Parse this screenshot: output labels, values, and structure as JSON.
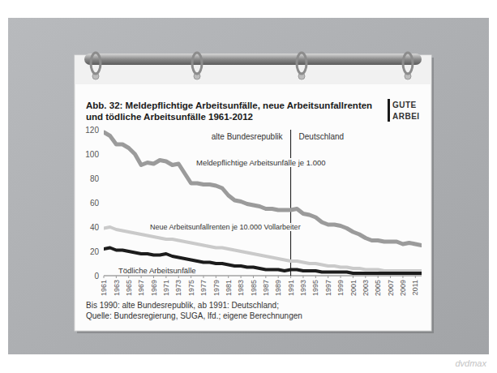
{
  "chart_data": {
    "type": "line",
    "title": "Abb. 32: Meldepflichtige Arbeitsunfälle, neue Arbeitsunfallrenten und tödliche Arbeitsunfälle 1961-2012",
    "logo": [
      "GUTE",
      "ARBEI"
    ],
    "x": [
      1961,
      1962,
      1963,
      1964,
      1965,
      1966,
      1967,
      1968,
      1969,
      1970,
      1971,
      1972,
      1973,
      1974,
      1975,
      1976,
      1977,
      1978,
      1979,
      1980,
      1981,
      1982,
      1983,
      1984,
      1985,
      1986,
      1987,
      1988,
      1989,
      1990,
      1991,
      1992,
      1993,
      1994,
      1995,
      1996,
      1997,
      1998,
      1999,
      2000,
      2001,
      2002,
      2003,
      2004,
      2005,
      2006,
      2007,
      2008,
      2009,
      2010,
      2011,
      2012
    ],
    "series": [
      {
        "name": "Meldepflichtige Arbeitsunfälle je 1.000",
        "color": "#9b9b9b",
        "values": [
          118,
          115,
          108,
          108,
          105,
          100,
          91,
          93,
          92,
          95,
          94,
          91,
          92,
          84,
          76,
          76,
          75,
          75,
          74,
          72,
          66,
          62,
          61,
          59,
          58,
          57,
          55,
          55,
          54,
          54,
          54,
          55,
          51,
          50,
          48,
          44,
          42,
          42,
          41,
          39,
          36,
          34,
          31,
          29,
          29,
          28,
          28,
          28,
          26,
          27,
          26,
          25
        ]
      },
      {
        "name": "Neue Arbeitsunfallrenten je 10.000 Vollarbeiter",
        "color": "#cacaca",
        "values": [
          39,
          40,
          38,
          37,
          36,
          35,
          34,
          33,
          32,
          31,
          30,
          30,
          29,
          28,
          27,
          26,
          25,
          24,
          23,
          23,
          22,
          21,
          20,
          19,
          18,
          17,
          16,
          15,
          14,
          13,
          12,
          12,
          11,
          10,
          10,
          9,
          8,
          8,
          7,
          7,
          6,
          6,
          5,
          5,
          5,
          4,
          4,
          4,
          4,
          4,
          4,
          4
        ]
      },
      {
        "name": "Tödliche Arbeitsunfälle",
        "color": "#1c1c1c",
        "values": [
          22,
          23,
          21,
          21,
          20,
          19,
          18,
          18,
          17,
          17,
          18,
          16,
          15,
          14,
          13,
          12,
          11,
          11,
          10,
          10,
          9,
          8,
          8,
          7,
          7,
          6,
          5,
          5,
          5,
          4,
          5,
          5,
          4,
          4,
          4,
          3,
          3,
          3,
          3,
          3,
          2,
          2,
          2,
          2,
          2,
          2,
          2,
          2,
          2,
          2,
          2,
          2
        ]
      }
    ],
    "xlim": [
      1961,
      2012
    ],
    "xticks": [
      1961,
      1963,
      1965,
      1967,
      1969,
      1971,
      1973,
      1975,
      1977,
      1979,
      1981,
      1983,
      1985,
      1987,
      1989,
      1991,
      1993,
      1995,
      1997,
      1999,
      2001,
      2003,
      2005,
      2007,
      2009,
      2011
    ],
    "ylim": [
      0,
      120
    ],
    "yticks": [
      0,
      20,
      40,
      60,
      80,
      100,
      120
    ],
    "grid": false,
    "divider": {
      "x": 1991,
      "labels": [
        "alte Bundesrepublik",
        "Deutschland"
      ]
    },
    "notes": [
      "Bis 1990: alte Bundesrepublik, ab 1991: Deutschland;",
      "Quelle: Bundesregierung, SUGA, lfd.; eigene Berechnungen"
    ],
    "watermark": "dvdmax"
  }
}
